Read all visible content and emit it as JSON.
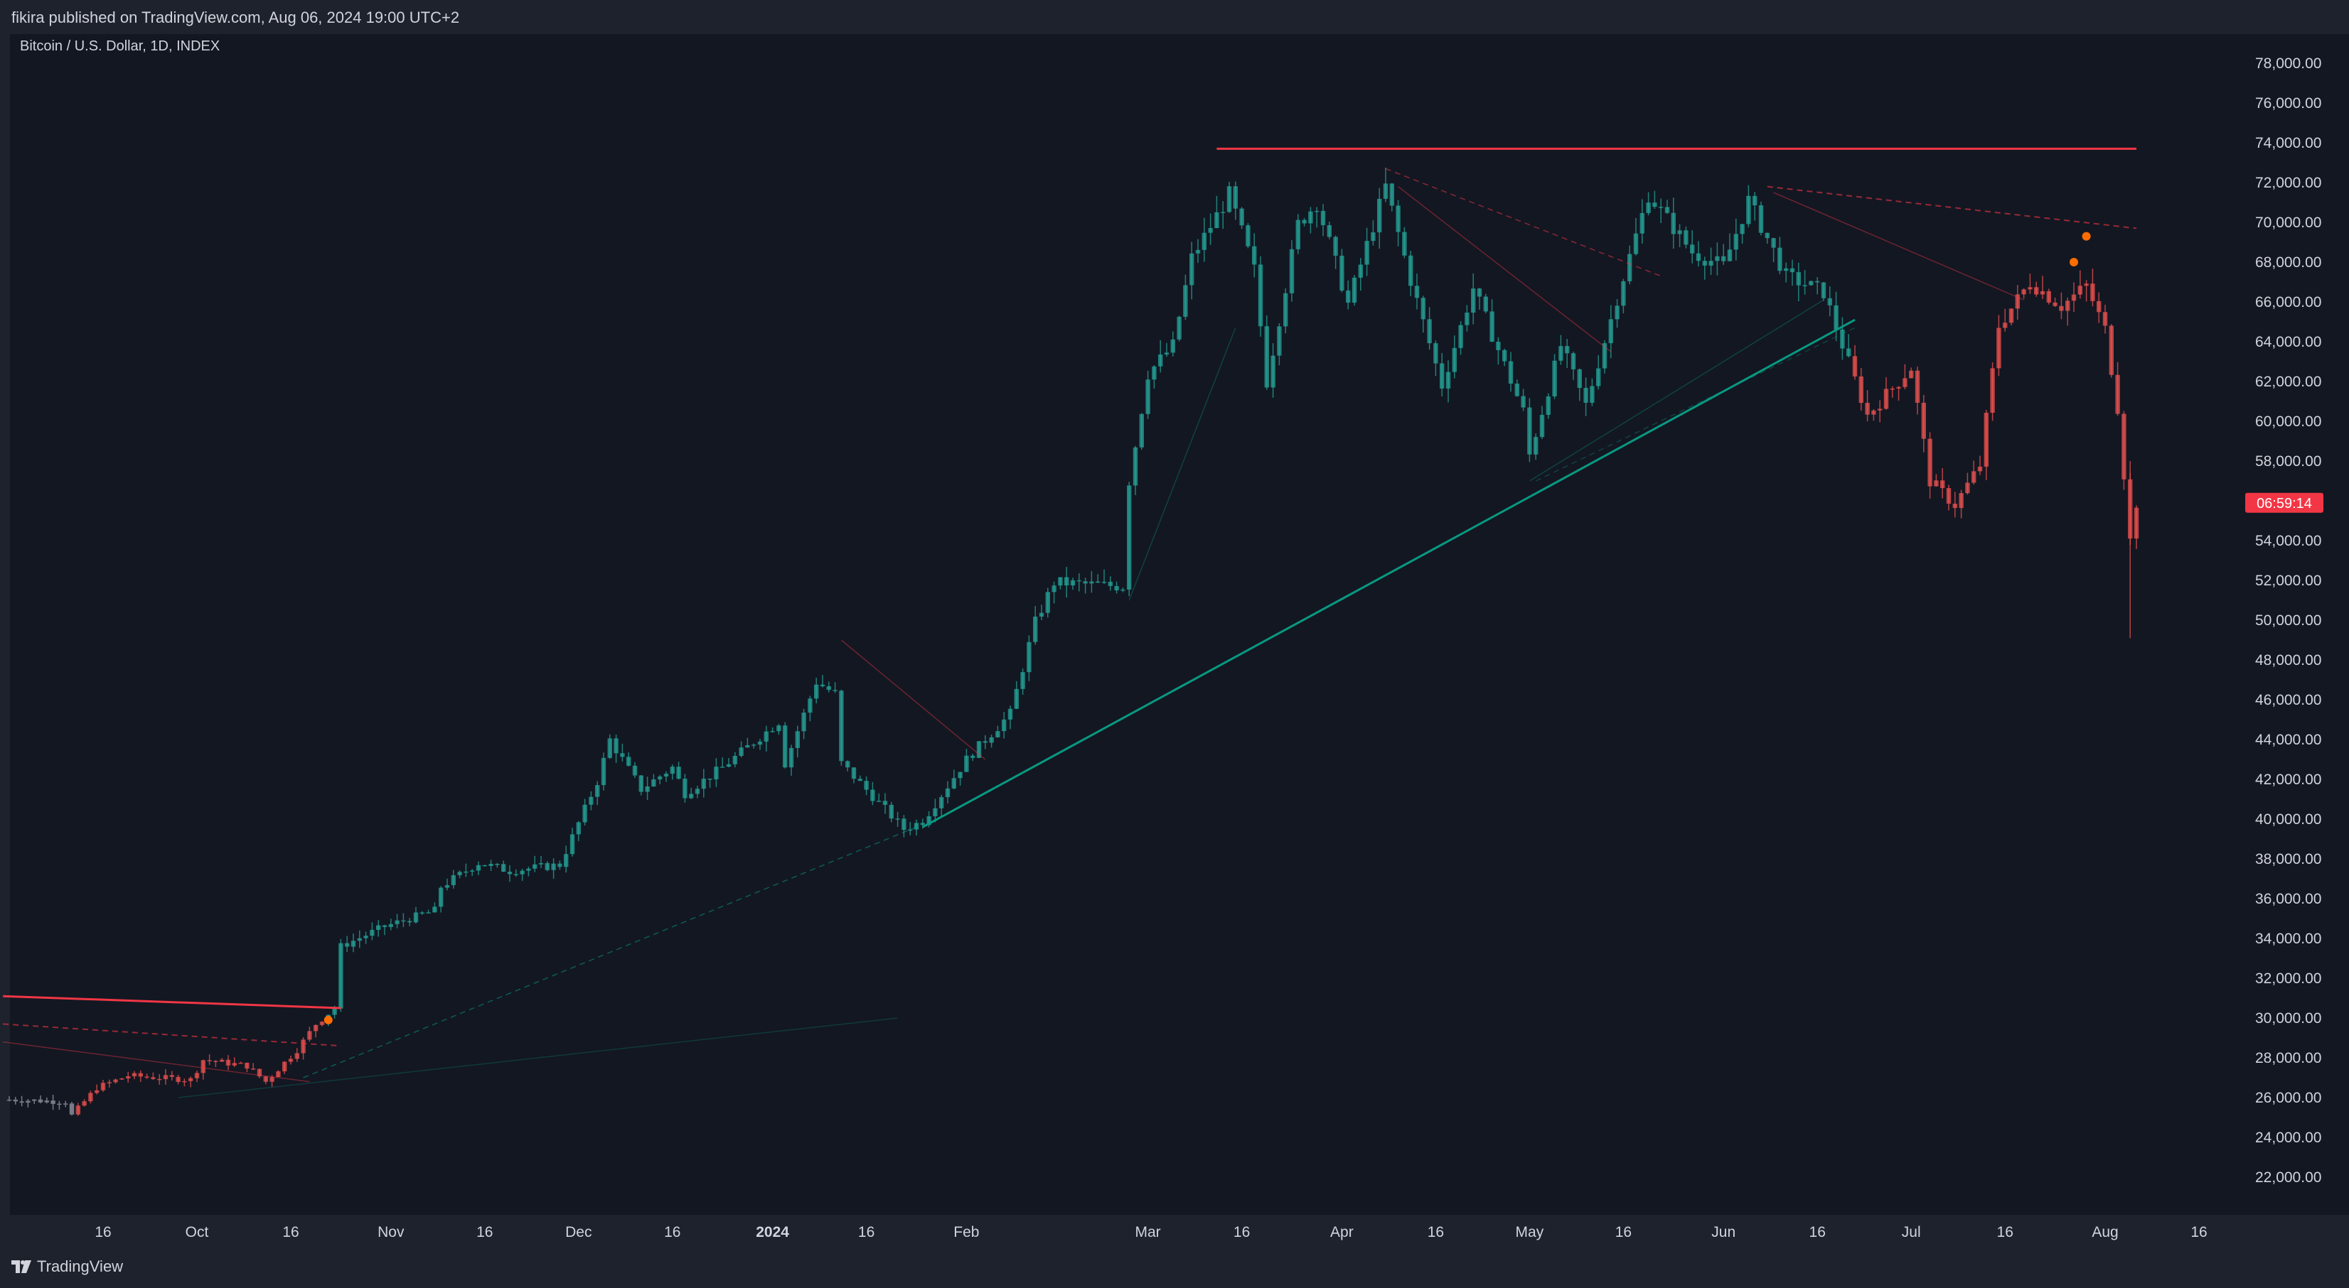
{
  "header": {
    "publish_info": "fikira published on TradingView.com, Aug 06, 2024 19:00 UTC+2"
  },
  "symbol": {
    "title": "Bitcoin / U.S. Dollar, 1D, INDEX"
  },
  "footer": {
    "brand": "TradingView",
    "logo_icon": "tradingview-logo-icon"
  },
  "colors": {
    "up": "#26a69a",
    "down": "#ef5350",
    "neutral": "#787b86",
    "background": "#131722",
    "text": "#d1d4dc",
    "resistance": "#f23645",
    "support": "#089981",
    "pivot": "#ff6d00"
  },
  "chart_data": {
    "type": "candlestick",
    "title": "Bitcoin / U.S. Dollar, 1D, INDEX",
    "y_range": [
      20500,
      79200
    ],
    "y_ticks": [
      "78,000.00",
      "76,000.00",
      "74,000.00",
      "72,000.00",
      "70,000.00",
      "68,000.00",
      "66,000.00",
      "64,000.00",
      "62,000.00",
      "60,000.00",
      "58,000.00",
      "56,000.00",
      "54,000.00",
      "52,000.00",
      "50,000.00",
      "48,000.00",
      "46,000.00",
      "44,000.00",
      "42,000.00",
      "40,000.00",
      "38,000.00",
      "36,000.00",
      "34,000.00",
      "32,000.00",
      "30,000.00",
      "28,000.00",
      "26,000.00",
      "24,000.00",
      "22,000.00"
    ],
    "x_ticks": [
      {
        "label": "16",
        "date": "2023-09-16"
      },
      {
        "label": "Oct",
        "date": "2023-10-01"
      },
      {
        "label": "16",
        "date": "2023-10-16"
      },
      {
        "label": "Nov",
        "date": "2023-11-01"
      },
      {
        "label": "16",
        "date": "2023-11-16"
      },
      {
        "label": "Dec",
        "date": "2023-12-01"
      },
      {
        "label": "16",
        "date": "2023-12-16"
      },
      {
        "label": "2024",
        "date": "2024-01-01"
      },
      {
        "label": "16",
        "date": "2024-01-16"
      },
      {
        "label": "Feb",
        "date": "2024-02-01"
      },
      {
        "label": "Mar",
        "date": "2024-03-01"
      },
      {
        "label": "16",
        "date": "2024-03-16"
      },
      {
        "label": "Apr",
        "date": "2024-04-01"
      },
      {
        "label": "16",
        "date": "2024-04-16"
      },
      {
        "label": "May",
        "date": "2024-05-01"
      },
      {
        "label": "16",
        "date": "2024-05-16"
      },
      {
        "label": "Jun",
        "date": "2024-06-01"
      },
      {
        "label": "16",
        "date": "2024-06-16"
      },
      {
        "label": "Jul",
        "date": "2024-07-01"
      },
      {
        "label": "16",
        "date": "2024-07-16"
      },
      {
        "label": "Aug",
        "date": "2024-08-01"
      },
      {
        "label": "16",
        "date": "2024-08-16"
      }
    ],
    "current_price": {
      "price": 55900,
      "countdown": "06:59:14"
    },
    "price_path": [
      [
        "2023-09-01",
        25900
      ],
      [
        "2023-09-10",
        25800
      ],
      [
        "2023-09-11",
        25100
      ],
      [
        "2023-09-15",
        26500
      ],
      [
        "2023-09-20",
        27100
      ],
      [
        "2023-09-30",
        26900
      ],
      [
        "2023-10-02",
        27900
      ],
      [
        "2023-10-09",
        27600
      ],
      [
        "2023-10-12",
        26800
      ],
      [
        "2023-10-17",
        28400
      ],
      [
        "2023-10-20",
        29700
      ],
      [
        "2023-10-23",
        30500
      ],
      [
        "2023-10-24",
        33600
      ],
      [
        "2023-10-31",
        34600
      ],
      [
        "2023-11-08",
        35400
      ],
      [
        "2023-11-09",
        36600
      ],
      [
        "2023-11-15",
        37800
      ],
      [
        "2023-11-20",
        37400
      ],
      [
        "2023-11-28",
        37700
      ],
      [
        "2023-12-04",
        41900
      ],
      [
        "2023-12-06",
        44000
      ],
      [
        "2023-12-11",
        41500
      ],
      [
        "2023-12-16",
        42600
      ],
      [
        "2023-12-18",
        41300
      ],
      [
        "2023-12-24",
        42600
      ],
      [
        "2024-01-02",
        44900
      ],
      [
        "2024-01-03",
        42800
      ],
      [
        "2024-01-08",
        46900
      ],
      [
        "2024-01-11",
        46300
      ],
      [
        "2024-01-12",
        42800
      ],
      [
        "2024-01-22",
        39500
      ],
      [
        "2024-01-25",
        39900
      ],
      [
        "2024-02-01",
        43000
      ],
      [
        "2024-02-08",
        45300
      ],
      [
        "2024-02-12",
        49900
      ],
      [
        "2024-02-15",
        51900
      ],
      [
        "2024-02-26",
        51700
      ],
      [
        "2024-02-27",
        57000
      ],
      [
        "2024-03-01",
        62400
      ],
      [
        "2024-03-05",
        63800
      ],
      [
        "2024-03-08",
        68200
      ],
      [
        "2024-03-14",
        71400
      ],
      [
        "2024-03-18",
        67600
      ],
      [
        "2024-03-20",
        62000
      ],
      [
        "2024-03-25",
        69900
      ],
      [
        "2024-03-28",
        71000
      ],
      [
        "2024-04-02",
        65900
      ],
      [
        "2024-04-08",
        71800
      ],
      [
        "2024-04-12",
        67100
      ],
      [
        "2024-04-17",
        61800
      ],
      [
        "2024-04-22",
        66700
      ],
      [
        "2024-04-30",
        60500
      ],
      [
        "2024-05-01",
        58300
      ],
      [
        "2024-05-06",
        63800
      ],
      [
        "2024-05-10",
        60800
      ],
      [
        "2024-05-15",
        66200
      ],
      [
        "2024-05-20",
        71400
      ],
      [
        "2024-05-27",
        68500
      ],
      [
        "2024-06-01",
        67800
      ],
      [
        "2024-06-05",
        71100
      ],
      [
        "2024-06-11",
        67300
      ],
      [
        "2024-06-17",
        66500
      ],
      [
        "2024-06-24",
        60300
      ],
      [
        "2024-07-01",
        62700
      ],
      [
        "2024-07-04",
        57000
      ],
      [
        "2024-07-08",
        55800
      ],
      [
        "2024-07-12",
        57800
      ],
      [
        "2024-07-15",
        64800
      ],
      [
        "2024-07-20",
        67000
      ],
      [
        "2024-07-25",
        65800
      ],
      [
        "2024-07-29",
        66800
      ],
      [
        "2024-08-01",
        64600
      ],
      [
        "2024-08-03",
        60700
      ],
      [
        "2024-08-05",
        54000
      ],
      [
        "2024-08-06",
        55900
      ]
    ],
    "annotations": {
      "lines": [
        {
          "p1": [
            "2023-08-31",
            31100
          ],
          "p2": [
            "2023-10-24",
            30500
          ],
          "color": "#f23645",
          "width": 3,
          "style": "solid"
        },
        {
          "p1": [
            "2024-03-12",
            73700
          ],
          "p2": [
            "2024-08-06",
            73700
          ],
          "color": "#f23645",
          "width": 3,
          "style": "solid"
        },
        {
          "p1": [
            "2024-01-25",
            39600
          ],
          "p2": [
            "2024-06-22",
            65100
          ],
          "color": "#089981",
          "width": 3,
          "style": "solid"
        },
        {
          "p1": [
            "2023-08-31",
            29700
          ],
          "p2": [
            "2023-10-24",
            28600
          ],
          "color": "#f2364599",
          "width": 2,
          "style": "dashed"
        },
        {
          "p1": [
            "2023-08-31",
            28800
          ],
          "p2": [
            "2023-10-19",
            26800
          ],
          "color": "#f2364566",
          "width": 1.5,
          "style": "solid"
        },
        {
          "p1": [
            "2023-09-28",
            26000
          ],
          "p2": [
            "2024-01-21",
            30000
          ],
          "color": "#08998144",
          "width": 1.5,
          "style": "solid"
        },
        {
          "p1": [
            "2023-10-18",
            27000
          ],
          "p2": [
            "2024-01-24",
            39600
          ],
          "color": "#08998188",
          "width": 1.5,
          "style": "dashed"
        },
        {
          "p1": [
            "2024-01-12",
            49000
          ],
          "p2": [
            "2024-02-04",
            43000
          ],
          "color": "#f2364566",
          "width": 1.5,
          "style": "solid"
        },
        {
          "p1": [
            "2024-02-27",
            51000
          ],
          "p2": [
            "2024-03-15",
            64700
          ],
          "color": "#08998155",
          "width": 1.5,
          "style": "solid"
        },
        {
          "p1": [
            "2024-04-08",
            72700
          ],
          "p2": [
            "2024-05-22",
            67300
          ],
          "color": "#f2364588",
          "width": 1.5,
          "style": "dashed"
        },
        {
          "p1": [
            "2024-04-10",
            71800
          ],
          "p2": [
            "2024-05-14",
            63500
          ],
          "color": "#f2364566",
          "width": 1.5,
          "style": "solid"
        },
        {
          "p1": [
            "2024-05-01",
            57000
          ],
          "p2": [
            "2024-06-17",
            66100
          ],
          "color": "#08998155",
          "width": 1.5,
          "style": "solid"
        },
        {
          "p1": [
            "2024-06-08",
            71800
          ],
          "p2": [
            "2024-08-06",
            69700
          ],
          "color": "#f2364599",
          "width": 2,
          "style": "dashed"
        },
        {
          "p1": [
            "2024-06-09",
            71500
          ],
          "p2": [
            "2024-07-19",
            66100
          ],
          "color": "#f2364566",
          "width": 1.5,
          "style": "solid"
        },
        {
          "p1": [
            "2024-06-22",
            64700
          ],
          "p2": [
            "2024-05-02",
            57000
          ],
          "color": "#08998155",
          "width": 1.5,
          "style": "dashed"
        }
      ],
      "markers": [
        {
          "date": "2023-10-22",
          "price": 29900,
          "color": "#ff6d00"
        },
        {
          "date": "2024-07-27",
          "price": 68000,
          "color": "#ff6d00"
        },
        {
          "date": "2024-07-29",
          "price": 69300,
          "color": "#ff6d00"
        }
      ]
    }
  }
}
